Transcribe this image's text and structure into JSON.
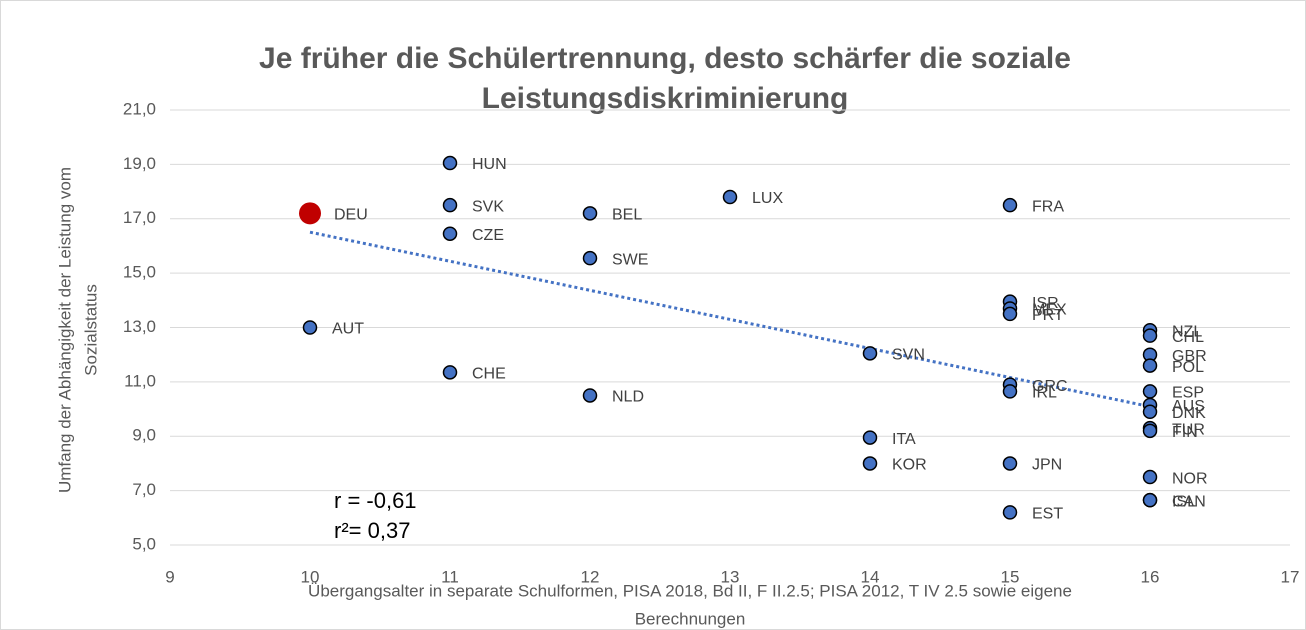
{
  "chart_data": {
    "type": "scatter",
    "title": [
      "Je früher die Schülertrennung, desto schärfer die soziale",
      "Leistungsdiskriminierung"
    ],
    "y_label": [
      "Umfang der Abhängigkeit der Leistung vom",
      "Sozialstatus"
    ],
    "x_label": [
      "Übergangsalter in separate Schulformen, PISA 2018, Bd II, F II.2.5; PISA 2012, T IV 2.5 sowie eigene",
      "Berechnungen"
    ],
    "annotations": [
      "r = -0,61",
      "r²=  0,37"
    ],
    "labels": [
      "DEU",
      "AUT",
      "HUN",
      "SVK",
      "CZE",
      "CHE",
      "BEL",
      "SWE",
      "NLD",
      "LUX",
      "SVN",
      "ITA",
      "KOR",
      "FRA",
      "ISR",
      "MEX",
      "PRT",
      "GRC",
      "IRL",
      "JPN",
      "EST",
      "NZL",
      "CHL",
      "GBR",
      "POL",
      "ESP",
      "AUS",
      "DNK",
      "TUR",
      "FIN",
      "NOR",
      "ISL",
      "CAN"
    ],
    "x": [
      10,
      10,
      11,
      11,
      11,
      11,
      12,
      12,
      12,
      13,
      14,
      14,
      14,
      15,
      15,
      15,
      15,
      15,
      15,
      15,
      15,
      16,
      16,
      16,
      16,
      16,
      16,
      16,
      16,
      16,
      16,
      16,
      16
    ],
    "values": [
      17.2,
      13.0,
      19.05,
      17.5,
      16.45,
      11.35,
      17.2,
      15.55,
      10.5,
      17.8,
      12.05,
      8.95,
      8.0,
      17.5,
      13.95,
      13.7,
      13.5,
      10.9,
      10.65,
      8.0,
      6.2,
      12.9,
      12.7,
      12.0,
      11.6,
      10.65,
      10.15,
      9.9,
      9.3,
      9.2,
      7.5,
      6.65,
      6.65
    ],
    "point_colors": [
      "#c00000",
      "#4472c4",
      "#4472c4",
      "#4472c4",
      "#4472c4",
      "#4472c4",
      "#4472c4",
      "#4472c4",
      "#4472c4",
      "#4472c4",
      "#4472c4",
      "#4472c4",
      "#4472c4",
      "#4472c4",
      "#4472c4",
      "#4472c4",
      "#4472c4",
      "#4472c4",
      "#4472c4",
      "#4472c4",
      "#4472c4",
      "#4472c4",
      "#4472c4",
      "#4472c4",
      "#4472c4",
      "#4472c4",
      "#4472c4",
      "#4472c4",
      "#4472c4",
      "#4472c4",
      "#4472c4",
      "#4472c4",
      "#4472c4"
    ],
    "trendline_color": "#4472c4",
    "xlim": [
      9,
      17
    ],
    "xticks": [
      9,
      10,
      11,
      12,
      13,
      14,
      15,
      16,
      17
    ],
    "ylim": [
      5,
      21
    ],
    "yticks": [
      {
        "value": 5,
        "label": "5,0"
      },
      {
        "value": 7,
        "label": "7,0"
      },
      {
        "value": 9,
        "label": "9,0"
      },
      {
        "value": 11,
        "label": "11,0"
      },
      {
        "value": 13,
        "label": "13,0"
      },
      {
        "value": 15,
        "label": "15,0"
      },
      {
        "value": 17,
        "label": "17,0"
      },
      {
        "value": 19,
        "label": "19,0"
      },
      {
        "value": 21,
        "label": "21,0"
      }
    ],
    "grid": true
  }
}
